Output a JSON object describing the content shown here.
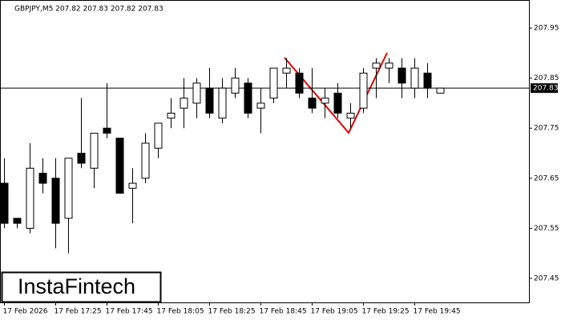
{
  "chart_data": {
    "type": "candlestick",
    "header": "GBPJPY,M5  207.82 207.83 207.82 207.83",
    "watermark": "InstaFintech",
    "categories": [
      "17 Feb 2026",
      null,
      null,
      null,
      "17 Feb 17:25",
      null,
      null,
      null,
      "17 Feb 17:45",
      null,
      null,
      null,
      "17 Feb 18:05",
      null,
      null,
      null,
      "17 Feb 18:25",
      null,
      null,
      null,
      "17 Feb 18:45",
      null,
      null,
      null,
      "17 Feb 19:05",
      null,
      null,
      null,
      "17 Feb 19:25",
      null,
      null,
      null,
      "17 Feb 19:45",
      null,
      null
    ],
    "open": [
      207.64,
      207.57,
      207.55,
      207.66,
      207.65,
      207.57,
      207.7,
      207.67,
      207.75,
      207.73,
      207.63,
      207.65,
      207.71,
      207.77,
      207.79,
      207.8,
      207.83,
      207.77,
      207.82,
      207.84,
      207.79,
      207.81,
      207.86,
      207.86,
      207.81,
      207.8,
      207.82,
      207.77,
      207.79,
      207.87,
      207.87,
      207.87,
      207.83,
      207.86,
      207.82
    ],
    "high": [
      207.69,
      207.57,
      207.72,
      207.69,
      207.69,
      207.69,
      207.81,
      207.74,
      207.84,
      207.73,
      207.67,
      207.74,
      207.76,
      207.81,
      207.85,
      207.85,
      207.87,
      207.85,
      207.87,
      207.85,
      207.83,
      207.87,
      207.89,
      207.87,
      207.87,
      207.83,
      207.84,
      207.8,
      207.87,
      207.89,
      207.89,
      207.89,
      207.89,
      207.88,
      207.83
    ],
    "low": [
      207.55,
      207.55,
      207.54,
      207.62,
      207.51,
      207.5,
      207.67,
      207.63,
      207.73,
      207.62,
      207.56,
      207.64,
      207.69,
      207.75,
      207.75,
      207.77,
      207.77,
      207.76,
      207.81,
      207.77,
      207.74,
      207.8,
      207.83,
      207.81,
      207.78,
      207.77,
      207.77,
      207.75,
      207.78,
      207.81,
      207.84,
      207.81,
      207.81,
      207.81,
      207.82
    ],
    "close": [
      207.56,
      207.56,
      207.67,
      207.64,
      207.56,
      207.69,
      207.68,
      207.74,
      207.74,
      207.62,
      207.64,
      207.72,
      207.76,
      207.78,
      207.81,
      207.84,
      207.78,
      207.83,
      207.85,
      207.78,
      207.8,
      207.87,
      207.87,
      207.82,
      207.79,
      207.81,
      207.78,
      207.78,
      207.86,
      207.88,
      207.88,
      207.84,
      207.87,
      207.83,
      207.83
    ],
    "up_color": "#ffffff",
    "down_color": "#000000",
    "last_price": 207.83,
    "ylim": [
      207.402,
      208.006
    ],
    "yticks": [
      207.45,
      207.55,
      207.65,
      207.75,
      207.85,
      207.95
    ]
  }
}
